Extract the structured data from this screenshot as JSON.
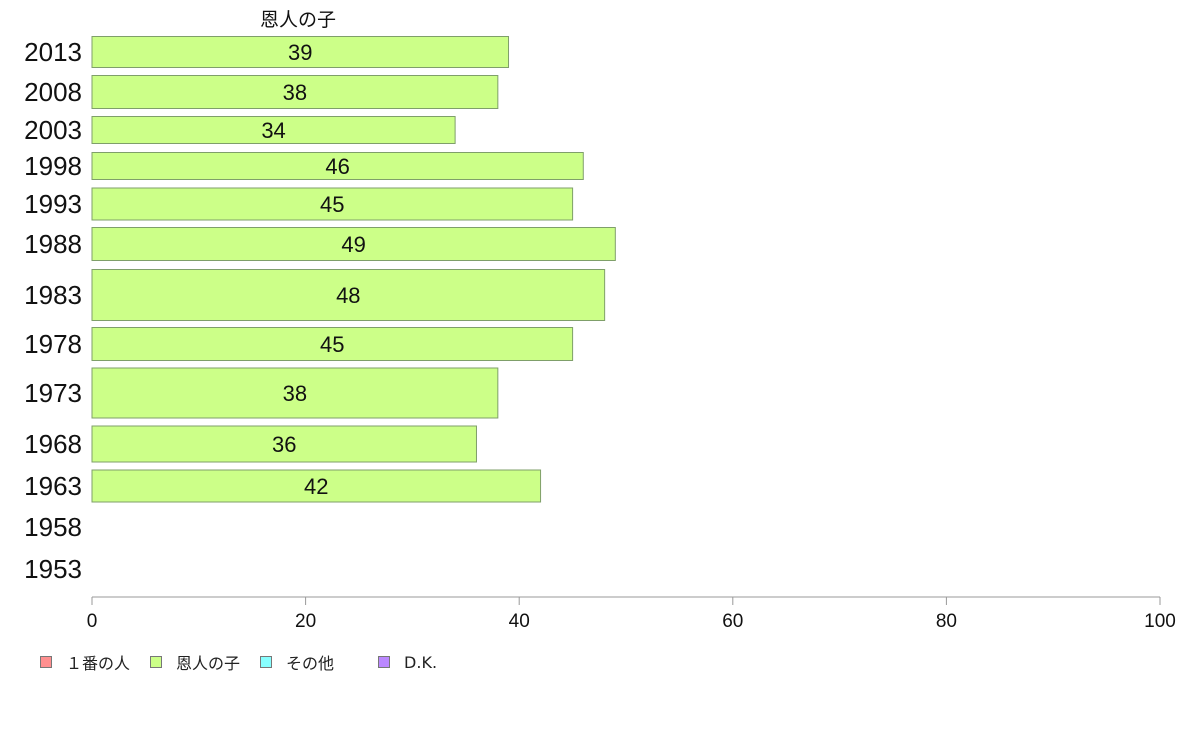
{
  "chart_data": {
    "type": "bar",
    "orientation": "horizontal",
    "stacked": true,
    "title": "恩人の子",
    "categories": [
      "2013",
      "2008",
      "2003",
      "1998",
      "1993",
      "1988",
      "1983",
      "1978",
      "1973",
      "1968",
      "1963",
      "1958",
      "1953"
    ],
    "series": [
      {
        "name": "１番の人",
        "color": "#ff8f8f",
        "values": [
          null,
          null,
          null,
          null,
          null,
          null,
          null,
          null,
          null,
          null,
          null,
          null,
          null
        ]
      },
      {
        "name": "恩人の子",
        "color": "#ccff88",
        "values": [
          39,
          38,
          34,
          46,
          45,
          49,
          48,
          45,
          38,
          36,
          42,
          null,
          null
        ]
      },
      {
        "name": "その他",
        "color": "#88ffff",
        "values": [
          null,
          null,
          null,
          null,
          null,
          null,
          null,
          null,
          null,
          null,
          null,
          null,
          null
        ]
      },
      {
        "name": "D.K.",
        "color": "#bb88ff",
        "values": [
          null,
          null,
          null,
          null,
          null,
          null,
          null,
          null,
          null,
          null,
          null,
          null,
          null
        ]
      }
    ],
    "xlim": [
      0,
      100
    ],
    "xticks": [
      0,
      20,
      40,
      60,
      80,
      100
    ],
    "grid": false,
    "legend_position": "bottom-left"
  }
}
